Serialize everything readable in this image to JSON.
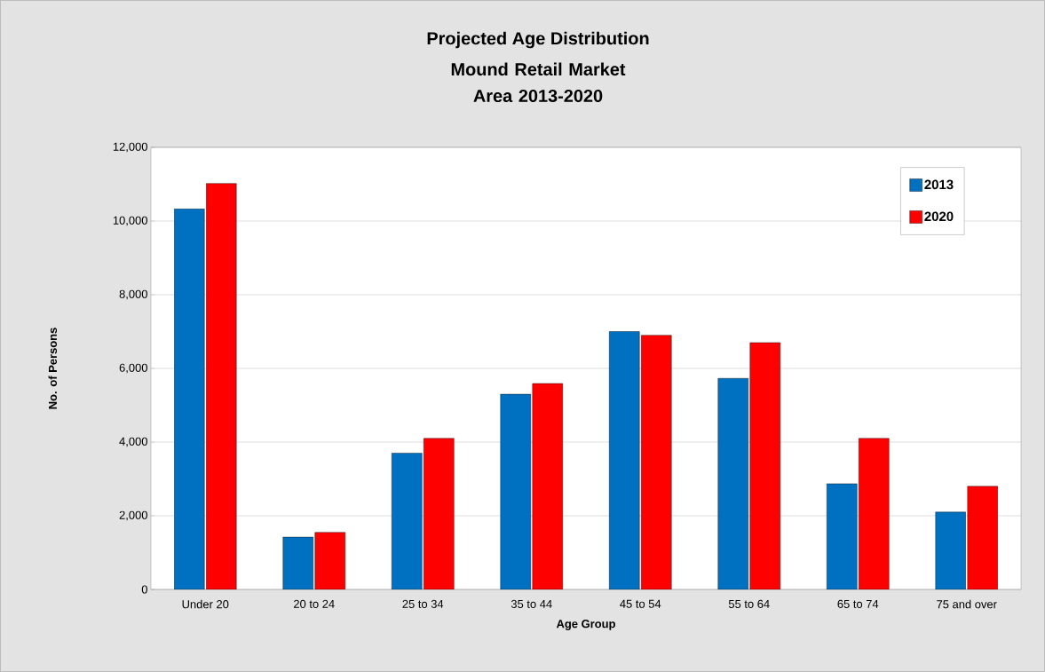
{
  "chart_data": {
    "type": "bar",
    "title": "Projected Age Distribution",
    "subtitle": "Mound Retail Market Area 2013-2020",
    "xlabel": "Age Group",
    "ylabel": "No. of Persons",
    "categories": [
      "Under 20",
      "20 to 24",
      "25 to 34",
      "35 to 44",
      "45 to 54",
      "55 to 64",
      "65 to 74",
      "75 and over"
    ],
    "series": [
      {
        "name": "2013",
        "color": "#0070c0",
        "values": [
          10330,
          1420,
          3700,
          5300,
          7000,
          5730,
          2870,
          2100
        ]
      },
      {
        "name": "2020",
        "color": "#ff0000",
        "values": [
          11020,
          1550,
          4100,
          5590,
          6900,
          6700,
          4100,
          2800
        ]
      }
    ],
    "ylim": [
      0,
      12000
    ],
    "yticks": [
      0,
      {
        "value": 2000,
        "label": "2,000"
      },
      {
        "value": 4000,
        "label": "4,000"
      },
      {
        "value": 6000,
        "label": "6,000"
      },
      {
        "value": 8000,
        "label": "8,000"
      },
      {
        "value": 10000,
        "label": "10,000"
      },
      {
        "value": 12000,
        "label": "12,000"
      }
    ],
    "grid": "y",
    "legend": "top right"
  }
}
